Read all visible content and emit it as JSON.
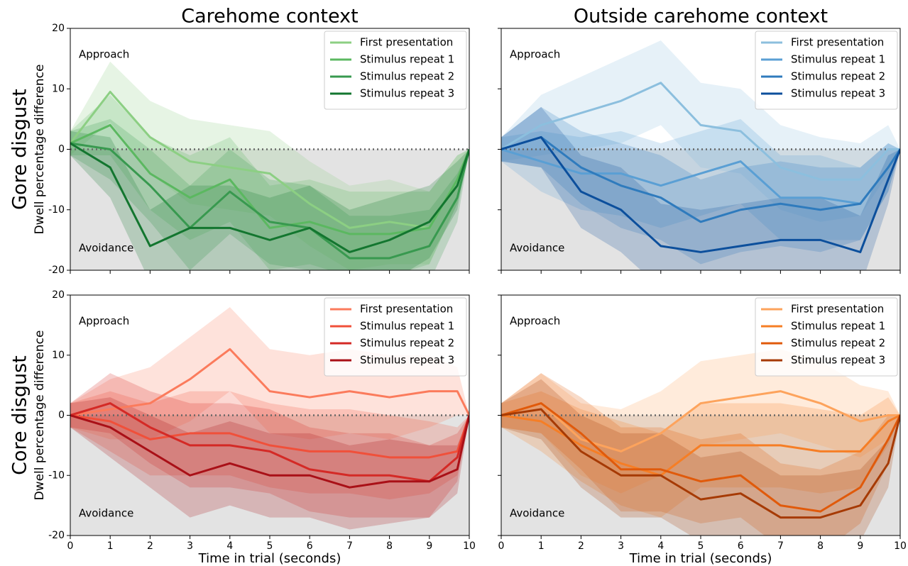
{
  "chart_data": [
    {
      "type": "line",
      "title": "Carehome context",
      "row_label": "Gore disgust",
      "ylabel": "Dwell percentage difference",
      "annotations": [
        "Approach",
        "Avoidance"
      ],
      "legend": "upper right",
      "show_xtick_labels": false,
      "show_ytick_labels": true,
      "x": [
        0,
        1,
        2,
        3,
        4,
        5,
        6,
        7,
        8,
        9,
        9.7,
        10
      ],
      "xlim": [
        0,
        10
      ],
      "ylim": [
        -20,
        20
      ],
      "xticks": [
        0,
        1,
        2,
        3,
        4,
        5,
        6,
        7,
        8,
        9,
        10
      ],
      "yticks": [
        -20,
        -10,
        0,
        10,
        20
      ],
      "series": [
        {
          "name": "First presentation",
          "color": "#8ccf83",
          "values": [
            1,
            9.5,
            2,
            -2,
            -3,
            -4,
            -9,
            -13,
            -12,
            -13,
            -5,
            0
          ],
          "upper": [
            3,
            14.5,
            8,
            5,
            4,
            3,
            -2,
            -6,
            -5,
            -7,
            -1,
            0
          ],
          "lower": [
            -1,
            4.5,
            -4,
            -9,
            -10,
            -11,
            -16,
            -20,
            -19,
            -19,
            -9,
            0
          ]
        },
        {
          "name": "Stimulus repeat 1",
          "color": "#5bb860",
          "values": [
            1,
            4,
            -4,
            -8,
            -5,
            -13,
            -12,
            -14,
            -14,
            -13,
            -5,
            0
          ],
          "upper": [
            3,
            9,
            2,
            -1,
            2,
            -6,
            -5,
            -7,
            -7,
            -7,
            -1,
            0
          ],
          "lower": [
            -1,
            -1,
            -10,
            -15,
            -12,
            -20,
            -19,
            -21,
            -21,
            -19,
            -9,
            0
          ]
        },
        {
          "name": "Stimulus repeat 2",
          "color": "#38994f",
          "values": [
            1,
            0,
            -6,
            -13,
            -7,
            -12,
            -13,
            -18,
            -18,
            -16,
            -8,
            0
          ],
          "upper": [
            3,
            5,
            0,
            -6,
            0,
            -5,
            -6,
            -11,
            -11,
            -10,
            -4,
            0
          ],
          "lower": [
            -1,
            -5,
            -12,
            -20,
            -14,
            -19,
            -20,
            -25,
            -25,
            -22,
            -12,
            0
          ]
        },
        {
          "name": "Stimulus repeat 3",
          "color": "#13762f",
          "values": [
            1,
            -3,
            -16,
            -13,
            -13,
            -15,
            -13,
            -17,
            -15,
            -12,
            -6,
            0
          ],
          "upper": [
            3,
            2,
            -10,
            -6,
            -6,
            -8,
            -6,
            -10,
            -8,
            -6,
            -2,
            0
          ],
          "lower": [
            -1,
            -8,
            -22,
            -20,
            -20,
            -22,
            -20,
            -24,
            -22,
            -18,
            -10,
            0
          ]
        }
      ]
    },
    {
      "type": "line",
      "title": "Outside carehome context",
      "annotations": [
        "Approach",
        "Avoidance"
      ],
      "legend": "upper right",
      "show_xtick_labels": false,
      "show_ytick_labels": false,
      "x": [
        0,
        1,
        2,
        3,
        4,
        5,
        6,
        7,
        8,
        9,
        9.7,
        10
      ],
      "xlim": [
        0,
        10
      ],
      "ylim": [
        -20,
        20
      ],
      "xticks": [
        0,
        1,
        2,
        3,
        4,
        5,
        6,
        7,
        8,
        9,
        10
      ],
      "yticks": [
        -20,
        -10,
        0,
        10,
        20
      ],
      "series": [
        {
          "name": "First presentation",
          "color": "#8cbfde",
          "values": [
            0,
            4,
            6,
            8,
            11,
            4,
            3,
            -3,
            -5,
            -5,
            0,
            0
          ],
          "upper": [
            2,
            9,
            12,
            15,
            18,
            11,
            10,
            4,
            2,
            1,
            4,
            0
          ],
          "lower": [
            -2,
            -1,
            0,
            1,
            4,
            -3,
            -4,
            -10,
            -12,
            -11,
            -4,
            0
          ]
        },
        {
          "name": "Stimulus repeat 1",
          "color": "#5a9fd4",
          "values": [
            0,
            -2,
            -4,
            -4,
            -6,
            -4,
            -2,
            -8,
            -8,
            -9,
            -3,
            0
          ],
          "upper": [
            2,
            3,
            2,
            3,
            1,
            3,
            5,
            -1,
            -1,
            -3,
            1,
            0
          ],
          "lower": [
            -2,
            -7,
            -10,
            -11,
            -13,
            -11,
            -9,
            -15,
            -15,
            -15,
            -7,
            0
          ]
        },
        {
          "name": "Stimulus repeat 2",
          "color": "#2f7bbd",
          "values": [
            0,
            2,
            -3,
            -6,
            -8,
            -12,
            -10,
            -9,
            -10,
            -9,
            -3,
            0
          ],
          "upper": [
            2,
            7,
            3,
            1,
            -1,
            -5,
            -3,
            -2,
            -3,
            -3,
            1,
            0
          ],
          "lower": [
            -2,
            -3,
            -9,
            -13,
            -15,
            -19,
            -17,
            -16,
            -17,
            -15,
            -7,
            0
          ]
        },
        {
          "name": "Stimulus repeat 3",
          "color": "#0c4f9c",
          "values": [
            0,
            2,
            -7,
            -10,
            -16,
            -17,
            -16,
            -15,
            -15,
            -17,
            -5,
            0
          ],
          "upper": [
            2,
            7,
            -1,
            -3,
            -9,
            -10,
            -9,
            -8,
            -8,
            -11,
            -1,
            0
          ],
          "lower": [
            -2,
            -3,
            -13,
            -17,
            -23,
            -24,
            -23,
            -22,
            -22,
            -23,
            -9,
            0
          ]
        }
      ]
    },
    {
      "type": "line",
      "row_label": "Core disgust",
      "ylabel": "Dwell percentage difference",
      "xlabel": "Time in trial (seconds)",
      "annotations": [
        "Approach",
        "Avoidance"
      ],
      "legend": "upper right",
      "show_xtick_labels": true,
      "show_ytick_labels": true,
      "x": [
        0,
        1,
        2,
        3,
        4,
        5,
        6,
        7,
        8,
        9,
        9.7,
        10
      ],
      "xlim": [
        0,
        10
      ],
      "ylim": [
        -20,
        20
      ],
      "xticks": [
        0,
        1,
        2,
        3,
        4,
        5,
        6,
        7,
        8,
        9,
        10
      ],
      "yticks": [
        -20,
        -10,
        0,
        10,
        20
      ],
      "series": [
        {
          "name": "First presentation",
          "color": "#fb7b5c",
          "values": [
            0,
            1,
            2,
            6,
            11,
            4,
            3,
            4,
            3,
            4,
            4,
            0
          ],
          "upper": [
            2,
            6,
            8,
            13,
            18,
            11,
            10,
            11,
            10,
            10,
            8,
            0
          ],
          "lower": [
            -2,
            -4,
            -4,
            -1,
            4,
            -3,
            -4,
            -3,
            -4,
            -2,
            0,
            0
          ]
        },
        {
          "name": "Stimulus repeat 1",
          "color": "#f0503a",
          "values": [
            0,
            -1,
            -4,
            -3,
            -3,
            -5,
            -6,
            -6,
            -7,
            -7,
            -6,
            0
          ],
          "upper": [
            2,
            4,
            2,
            4,
            4,
            2,
            1,
            1,
            0,
            -1,
            -2,
            0
          ],
          "lower": [
            -2,
            -6,
            -10,
            -10,
            -10,
            -12,
            -13,
            -13,
            -14,
            -13,
            -10,
            0
          ]
        },
        {
          "name": "Stimulus repeat 2",
          "color": "#d42a26",
          "values": [
            0,
            2,
            -2,
            -5,
            -5,
            -6,
            -9,
            -10,
            -10,
            -11,
            -7,
            0
          ],
          "upper": [
            2,
            7,
            4,
            2,
            2,
            1,
            -2,
            -3,
            -3,
            -5,
            -3,
            0
          ],
          "lower": [
            -2,
            -3,
            -8,
            -12,
            -12,
            -13,
            -16,
            -17,
            -17,
            -17,
            -11,
            0
          ]
        },
        {
          "name": "Stimulus repeat 3",
          "color": "#a91017",
          "values": [
            0,
            -2,
            -6,
            -10,
            -8,
            -10,
            -10,
            -12,
            -11,
            -11,
            -9,
            0
          ],
          "upper": [
            2,
            3,
            0,
            -3,
            -1,
            -3,
            -3,
            -5,
            -4,
            -5,
            -5,
            0
          ],
          "lower": [
            -2,
            -7,
            -12,
            -17,
            -15,
            -17,
            -17,
            -19,
            -18,
            -17,
            -13,
            0
          ]
        }
      ]
    },
    {
      "type": "line",
      "xlabel": "Time in trial (seconds)",
      "annotations": [
        "Approach",
        "Avoidance"
      ],
      "legend": "upper right",
      "show_xtick_labels": true,
      "show_ytick_labels": false,
      "x": [
        0,
        1,
        2,
        3,
        4,
        5,
        6,
        7,
        8,
        9,
        9.7,
        10
      ],
      "xlim": [
        0,
        10
      ],
      "ylim": [
        -20,
        20
      ],
      "xticks": [
        0,
        1,
        2,
        3,
        4,
        5,
        6,
        7,
        8,
        9,
        10
      ],
      "yticks": [
        -20,
        -10,
        0,
        10,
        20
      ],
      "series": [
        {
          "name": "First presentation",
          "color": "#fda35c",
          "values": [
            0,
            2,
            -4,
            -6,
            -3,
            2,
            3,
            4,
            2,
            -1,
            0,
            0
          ],
          "upper": [
            2,
            7,
            2,
            1,
            4,
            9,
            10,
            11,
            9,
            5,
            4,
            0
          ],
          "lower": [
            -2,
            -3,
            -10,
            -13,
            -10,
            -5,
            -4,
            -3,
            -5,
            -7,
            -4,
            0
          ]
        },
        {
          "name": "Stimulus repeat 1",
          "color": "#f67e25",
          "values": [
            0,
            -1,
            -5,
            -8,
            -10,
            -5,
            -5,
            -5,
            -6,
            -6,
            -1,
            0
          ],
          "upper": [
            2,
            4,
            1,
            -1,
            -3,
            2,
            2,
            2,
            1,
            0,
            3,
            0
          ],
          "lower": [
            -2,
            -6,
            -11,
            -15,
            -17,
            -12,
            -12,
            -12,
            -13,
            -12,
            -5,
            0
          ]
        },
        {
          "name": "Stimulus repeat 2",
          "color": "#e05a0b",
          "values": [
            0,
            2,
            -3,
            -9,
            -9,
            -11,
            -10,
            -15,
            -16,
            -12,
            -4,
            0
          ],
          "upper": [
            2,
            7,
            3,
            -2,
            -2,
            -4,
            -3,
            -8,
            -9,
            -6,
            0,
            0
          ],
          "lower": [
            -2,
            -3,
            -9,
            -16,
            -16,
            -18,
            -17,
            -22,
            -23,
            -18,
            -8,
            0
          ]
        },
        {
          "name": "Stimulus repeat 3",
          "color": "#a63a04",
          "values": [
            0,
            1,
            -6,
            -10,
            -10,
            -14,
            -13,
            -17,
            -17,
            -15,
            -8,
            0
          ],
          "upper": [
            2,
            6,
            0,
            -3,
            -3,
            -7,
            -6,
            -10,
            -10,
            -9,
            -4,
            0
          ],
          "lower": [
            -2,
            -4,
            -12,
            -17,
            -17,
            -21,
            -20,
            -24,
            -24,
            -21,
            -12,
            0
          ]
        }
      ]
    }
  ]
}
